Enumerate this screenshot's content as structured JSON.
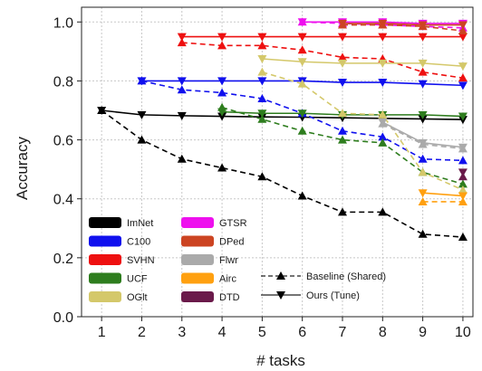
{
  "chart_data": {
    "type": "line",
    "title": "",
    "xlabel": "# tasks",
    "ylabel": "Accuracy",
    "x_ticks": [
      1,
      2,
      3,
      4,
      5,
      6,
      7,
      8,
      9,
      10
    ],
    "y_ticks": [
      "0.0",
      "0.2",
      "0.4",
      "0.6",
      "0.8",
      "1.0"
    ],
    "xlim": [
      1,
      10
    ],
    "ylim": [
      0,
      1.05
    ],
    "grid": true,
    "legend_placement": "bottom-left",
    "legend_datasets": [
      {
        "name": "ImNet",
        "color": "#000000"
      },
      {
        "name": "C100",
        "color": "#1010ee"
      },
      {
        "name": "SVHN",
        "color": "#ee1010"
      },
      {
        "name": "UCF",
        "color": "#2e7d1e"
      },
      {
        "name": "OGlt",
        "color": "#d4c86a"
      },
      {
        "name": "GTSR",
        "color": "#ee10ee"
      },
      {
        "name": "DPed",
        "color": "#cc4422"
      },
      {
        "name": "Flwr",
        "color": "#aaaaaa"
      },
      {
        "name": "Airc",
        "color": "#ffa010"
      },
      {
        "name": "DTD",
        "color": "#6a1a4a"
      }
    ],
    "legend_styles": [
      {
        "name": "Baseline (Shared)",
        "line": "dashed",
        "marker": "triangle-up"
      },
      {
        "name": "Ours (Tune)",
        "line": "solid",
        "marker": "triangle-down"
      }
    ],
    "series": [
      {
        "dataset": "ImNet",
        "method": "Ours (Tune)",
        "color": "#000000",
        "x": [
          1,
          2,
          3,
          4,
          5,
          6,
          7,
          8,
          9,
          10
        ],
        "y": [
          0.7,
          0.685,
          0.682,
          0.68,
          0.678,
          0.677,
          0.675,
          0.673,
          0.671,
          0.669
        ]
      },
      {
        "dataset": "ImNet",
        "method": "Baseline (Shared)",
        "color": "#000000",
        "x": [
          1,
          2,
          3,
          4,
          5,
          6,
          7,
          8,
          9,
          10
        ],
        "y": [
          0.7,
          0.6,
          0.535,
          0.505,
          0.475,
          0.41,
          0.355,
          0.355,
          0.28,
          0.27
        ]
      },
      {
        "dataset": "C100",
        "method": "Ours (Tune)",
        "color": "#1010ee",
        "x": [
          2,
          3,
          4,
          5,
          6,
          7,
          8,
          9,
          10
        ],
        "y": [
          0.8,
          0.8,
          0.8,
          0.8,
          0.8,
          0.795,
          0.795,
          0.79,
          0.785
        ]
      },
      {
        "dataset": "C100",
        "method": "Baseline (Shared)",
        "color": "#1010ee",
        "x": [
          2,
          3,
          4,
          5,
          6,
          7,
          8,
          9,
          10
        ],
        "y": [
          0.8,
          0.77,
          0.76,
          0.74,
          0.69,
          0.63,
          0.61,
          0.535,
          0.53
        ]
      },
      {
        "dataset": "SVHN",
        "method": "Ours (Tune)",
        "color": "#ee1010",
        "x": [
          3,
          4,
          5,
          6,
          7,
          8,
          9,
          10
        ],
        "y": [
          0.95,
          0.95,
          0.95,
          0.95,
          0.95,
          0.95,
          0.95,
          0.95
        ]
      },
      {
        "dataset": "SVHN",
        "method": "Baseline (Shared)",
        "color": "#ee1010",
        "x": [
          3,
          4,
          5,
          6,
          7,
          8,
          9,
          10
        ],
        "y": [
          0.93,
          0.92,
          0.92,
          0.905,
          0.88,
          0.875,
          0.83,
          0.81
        ]
      },
      {
        "dataset": "UCF",
        "method": "Ours (Tune)",
        "color": "#2e7d1e",
        "x": [
          4,
          5,
          6,
          7,
          8,
          9,
          10
        ],
        "y": [
          0.695,
          0.69,
          0.69,
          0.685,
          0.685,
          0.685,
          0.68
        ]
      },
      {
        "dataset": "UCF",
        "method": "Baseline (Shared)",
        "color": "#2e7d1e",
        "x": [
          4,
          5,
          6,
          7,
          8,
          9,
          10
        ],
        "y": [
          0.71,
          0.67,
          0.63,
          0.6,
          0.59,
          0.49,
          0.45
        ]
      },
      {
        "dataset": "OGlt",
        "method": "Ours (Tune)",
        "color": "#d4c86a",
        "x": [
          5,
          6,
          7,
          8,
          9,
          10
        ],
        "y": [
          0.875,
          0.865,
          0.86,
          0.86,
          0.86,
          0.85
        ]
      },
      {
        "dataset": "OGlt",
        "method": "Baseline (Shared)",
        "color": "#d4c86a",
        "x": [
          5,
          6,
          7,
          8,
          9,
          10
        ],
        "y": [
          0.83,
          0.79,
          0.69,
          0.685,
          0.49,
          0.43
        ]
      },
      {
        "dataset": "GTSR",
        "method": "Ours (Tune)",
        "color": "#ee10ee",
        "x": [
          6,
          7,
          8,
          9,
          10
        ],
        "y": [
          1.0,
          1.0,
          1.0,
          0.995,
          0.995
        ]
      },
      {
        "dataset": "GTSR",
        "method": "Baseline (Shared)",
        "color": "#ee10ee",
        "x": [
          6,
          7,
          8,
          9,
          10
        ],
        "y": [
          1.0,
          0.995,
          0.99,
          0.985,
          0.98
        ]
      },
      {
        "dataset": "DPed",
        "method": "Ours (Tune)",
        "color": "#cc4422",
        "x": [
          7,
          8,
          9,
          10
        ],
        "y": [
          0.995,
          0.995,
          0.99,
          0.99
        ]
      },
      {
        "dataset": "DPed",
        "method": "Baseline (Shared)",
        "color": "#cc4422",
        "x": [
          7,
          8,
          9,
          10
        ],
        "y": [
          0.99,
          0.99,
          0.985,
          0.97
        ]
      },
      {
        "dataset": "Flwr",
        "method": "Ours (Tune)",
        "color": "#aaaaaa",
        "x": [
          8,
          9,
          10
        ],
        "y": [
          0.66,
          0.59,
          0.575
        ]
      },
      {
        "dataset": "Flwr",
        "method": "Baseline (Shared)",
        "color": "#aaaaaa",
        "x": [
          8,
          9,
          10
        ],
        "y": [
          0.655,
          0.585,
          0.57
        ]
      },
      {
        "dataset": "Airc",
        "method": "Ours (Tune)",
        "color": "#ffa010",
        "x": [
          9,
          10
        ],
        "y": [
          0.42,
          0.41
        ]
      },
      {
        "dataset": "Airc",
        "method": "Baseline (Shared)",
        "color": "#ffa010",
        "x": [
          9,
          10
        ],
        "y": [
          0.39,
          0.39
        ]
      },
      {
        "dataset": "DTD",
        "method": "Ours (Tune)",
        "color": "#6a1a4a",
        "x": [
          10
        ],
        "y": [
          0.49
        ]
      },
      {
        "dataset": "DTD",
        "method": "Baseline (Shared)",
        "color": "#6a1a4a",
        "x": [
          10
        ],
        "y": [
          0.475
        ]
      }
    ]
  }
}
